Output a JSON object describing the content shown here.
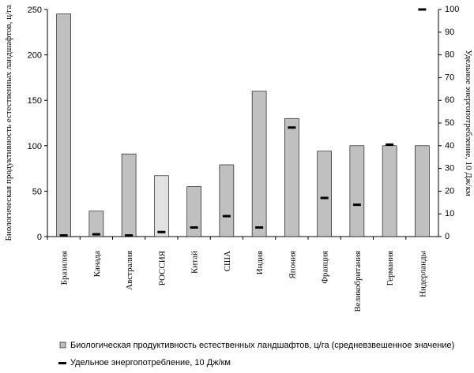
{
  "chart_data": {
    "type": "bar",
    "y_label": "Биологическая продуктивность естественных ландшафтов, ц/га",
    "y2_label": "Удельное энергопотребление, 10   Дж/км",
    "categories": [
      "Бразилия",
      "Канада",
      "Австралия",
      "РОССИЯ",
      "Китай",
      "США",
      "Индия",
      "Япония",
      "Франция",
      "Великобритания",
      "Германия",
      "Нидерланды"
    ],
    "series": [
      {
        "name": "Биологическая продуктивность естественных ландшафтов, ц/га (средневзвешенное значение)",
        "type": "bar",
        "color": "#c0c0c0",
        "point_colors": [
          "#c0c0c0",
          "#c0c0c0",
          "#c0c0c0",
          "#e2e2e2",
          "#c0c0c0",
          "#c0c0c0",
          "#c0c0c0",
          "#c0c0c0",
          "#c0c0c0",
          "#c0c0c0",
          "#c0c0c0",
          "#c0c0c0"
        ],
        "values": [
          245,
          28,
          91,
          67,
          55,
          79,
          160,
          130,
          94,
          100,
          100,
          100
        ]
      },
      {
        "name": "Удельное энергопотребление, 10      Дж/км",
        "type": "marker",
        "color": "#000000",
        "axis": "y2",
        "values": [
          0.5,
          1,
          0.5,
          2,
          4,
          9,
          4,
          48,
          17,
          14,
          40.5,
          100
        ]
      }
    ],
    "ylim": [
      0,
      250
    ],
    "yticks": [
      0,
      50,
      100,
      150,
      200,
      250
    ],
    "y2lim": [
      0,
      100
    ],
    "y2ticks": [
      0,
      10,
      20,
      30,
      40,
      50,
      60,
      70,
      80,
      90,
      100
    ],
    "grid": false
  }
}
